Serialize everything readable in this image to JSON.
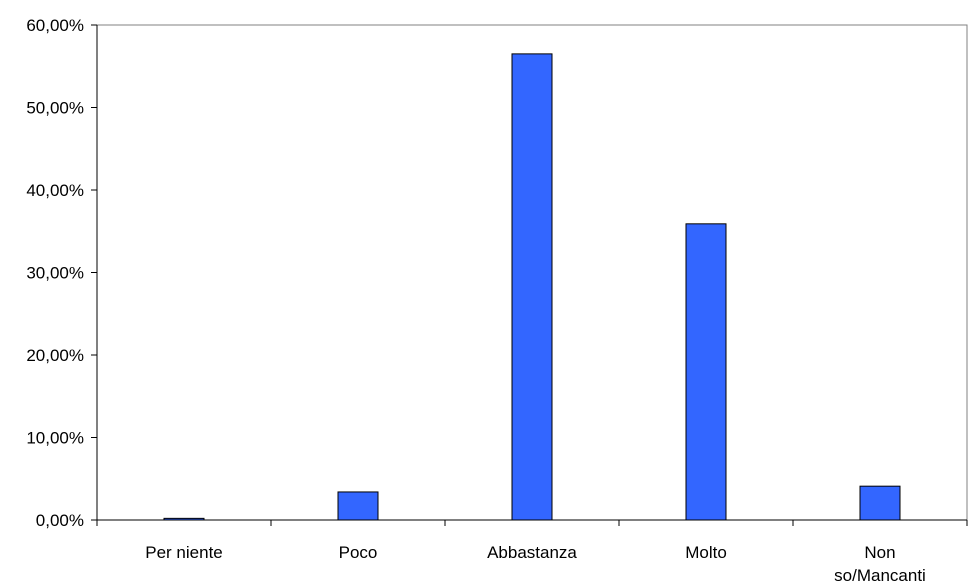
{
  "chart_data": {
    "type": "bar",
    "title": "",
    "xlabel": "",
    "ylabel": "",
    "categories": [
      "Per niente",
      [
        "Poco"
      ],
      "Abbastanza",
      "Molto",
      [
        "Non",
        "so/Mancanti"
      ]
    ],
    "category_labels": [
      [
        "Per niente"
      ],
      [
        "Poco"
      ],
      [
        "Abbastanza"
      ],
      [
        "Molto"
      ],
      [
        "Non",
        "so/Mancanti"
      ]
    ],
    "values": [
      0.2,
      3.4,
      56.5,
      35.9,
      4.1
    ],
    "ylim": [
      0,
      60
    ],
    "yticks": [
      0,
      10,
      20,
      30,
      40,
      50,
      60
    ],
    "ytick_labels": [
      "0,00%",
      "10,00%",
      "20,00%",
      "30,00%",
      "40,00%",
      "50,00%",
      "60,00%"
    ],
    "grid": false,
    "legend": "none",
    "colors": {
      "bar": "#3366FF",
      "bar_border": "#000000",
      "axis": "#000000",
      "frame": "#808080"
    }
  }
}
